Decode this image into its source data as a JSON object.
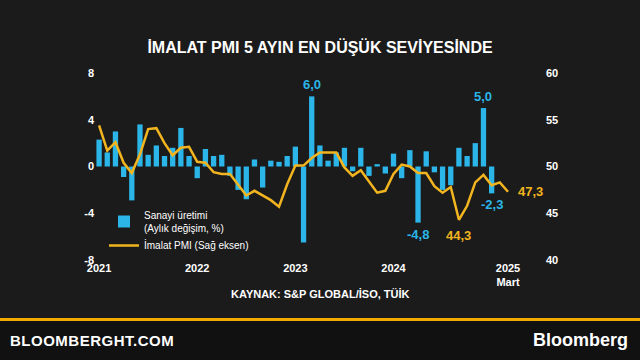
{
  "chart_data": {
    "type": "bar",
    "title": "İMALAT PMI 5 AYIN EN DÜŞÜK SEVİYESİNDE",
    "source": "KAYNAK: S&P GLOBAL/İSO, TÜİK",
    "categories": [
      "2021",
      null,
      null,
      null,
      null,
      null,
      null,
      null,
      null,
      null,
      null,
      null,
      "2022",
      null,
      null,
      null,
      null,
      null,
      null,
      null,
      null,
      null,
      null,
      null,
      "2023",
      null,
      null,
      null,
      null,
      null,
      null,
      null,
      null,
      null,
      null,
      null,
      "2024",
      null,
      null,
      null,
      null,
      null,
      null,
      null,
      null,
      null,
      null,
      null,
      null,
      null,
      "2025\nMart"
    ],
    "series": [
      {
        "name": "Sanayi üretimi (Aylık değişim, %)",
        "type": "bar",
        "color": "#2bb5e8",
        "axis": "y",
        "values": [
          2.3,
          1.2,
          3.0,
          -0.9,
          -2.9,
          3.6,
          1.0,
          1.8,
          0.9,
          1.6,
          3.3,
          0.9,
          -1.0,
          1.5,
          0.9,
          1.0,
          -0.8,
          -2.0,
          -2.8,
          0.6,
          -1.8,
          0.5,
          0.4,
          0.9,
          1.7,
          -6.5,
          6.0,
          1.8,
          0.5,
          1.2,
          1.6,
          -0.4,
          1.6,
          -0.8,
          0.2,
          -0.6,
          1.1,
          -1.0,
          1.4,
          -4.8,
          1.3,
          -0.5,
          -2.0,
          -1.6,
          1.6,
          0.9,
          2.0,
          5.0,
          -2.3,
          null,
          null
        ],
        "value_labels": [
          null,
          null,
          null,
          null,
          null,
          null,
          null,
          null,
          null,
          null,
          null,
          null,
          null,
          null,
          null,
          null,
          null,
          null,
          null,
          null,
          null,
          null,
          null,
          null,
          null,
          null,
          "6,0",
          null,
          null,
          null,
          null,
          null,
          null,
          null,
          null,
          null,
          null,
          null,
          null,
          "-4,8",
          null,
          null,
          null,
          null,
          null,
          null,
          null,
          "5,0",
          "-2,3",
          null,
          null
        ]
      },
      {
        "name": "İmalat PMI (Sağ eksen)",
        "type": "line",
        "color": "#f2b51f",
        "axis": "y2",
        "values": [
          54.4,
          51.7,
          52.6,
          50.4,
          49.3,
          51.3,
          54.0,
          54.1,
          52.5,
          51.2,
          52.0,
          52.1,
          50.5,
          50.4,
          49.4,
          49.2,
          49.2,
          48.1,
          46.9,
          47.4,
          46.9,
          46.4,
          45.7,
          48.1,
          50.1,
          50.1,
          50.9,
          51.5,
          51.5,
          51.5,
          49.9,
          49.0,
          49.6,
          48.4,
          47.2,
          47.4,
          49.2,
          50.2,
          50.0,
          49.3,
          49.3,
          47.9,
          47.2,
          47.8,
          44.3,
          45.8,
          48.3,
          49.1,
          48.0,
          48.3,
          47.3
        ],
        "value_labels": [
          null,
          null,
          null,
          null,
          null,
          null,
          null,
          null,
          null,
          null,
          null,
          null,
          null,
          null,
          null,
          null,
          null,
          null,
          null,
          null,
          null,
          null,
          null,
          null,
          null,
          null,
          null,
          null,
          null,
          null,
          null,
          null,
          null,
          null,
          null,
          null,
          null,
          null,
          null,
          null,
          null,
          null,
          null,
          null,
          "44,3",
          null,
          null,
          null,
          null,
          null,
          "47,3"
        ]
      }
    ],
    "ylim": [
      -8,
      8
    ],
    "yticks": [
      -8,
      -4,
      0,
      4,
      8
    ],
    "y2lim": [
      40,
      60
    ],
    "y2ticks": [
      40,
      45,
      50,
      55,
      60
    ],
    "grid": false,
    "legend": "lower left",
    "data_labels": true
  },
  "footer": {
    "left": "BLOOMBERGHT.COM",
    "right": "Bloomberg"
  }
}
